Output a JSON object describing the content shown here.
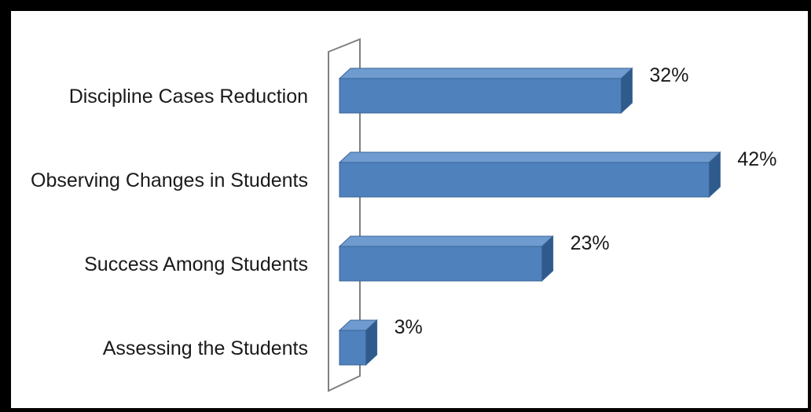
{
  "chart_data": {
    "type": "bar",
    "orientation": "horizontal",
    "style": "3d",
    "categories": [
      "Discipline Cases Reduction",
      "Observing Changes in Students",
      "Success Among Students",
      "Assessing the Students"
    ],
    "values": [
      32,
      42,
      23,
      3
    ],
    "value_labels": [
      "32%",
      "42%",
      "23%",
      "3%"
    ],
    "unit": "%",
    "xlim": [
      0,
      50
    ],
    "title": "",
    "xlabel": "",
    "ylabel": "",
    "grid": false,
    "legend": "none",
    "colors": {
      "bar_front": "#4f81bd",
      "bar_top": "#6f9bd0",
      "bar_side": "#2f5a8c",
      "bar_edge": "#3a6596",
      "axis_wall": "#808080"
    }
  }
}
